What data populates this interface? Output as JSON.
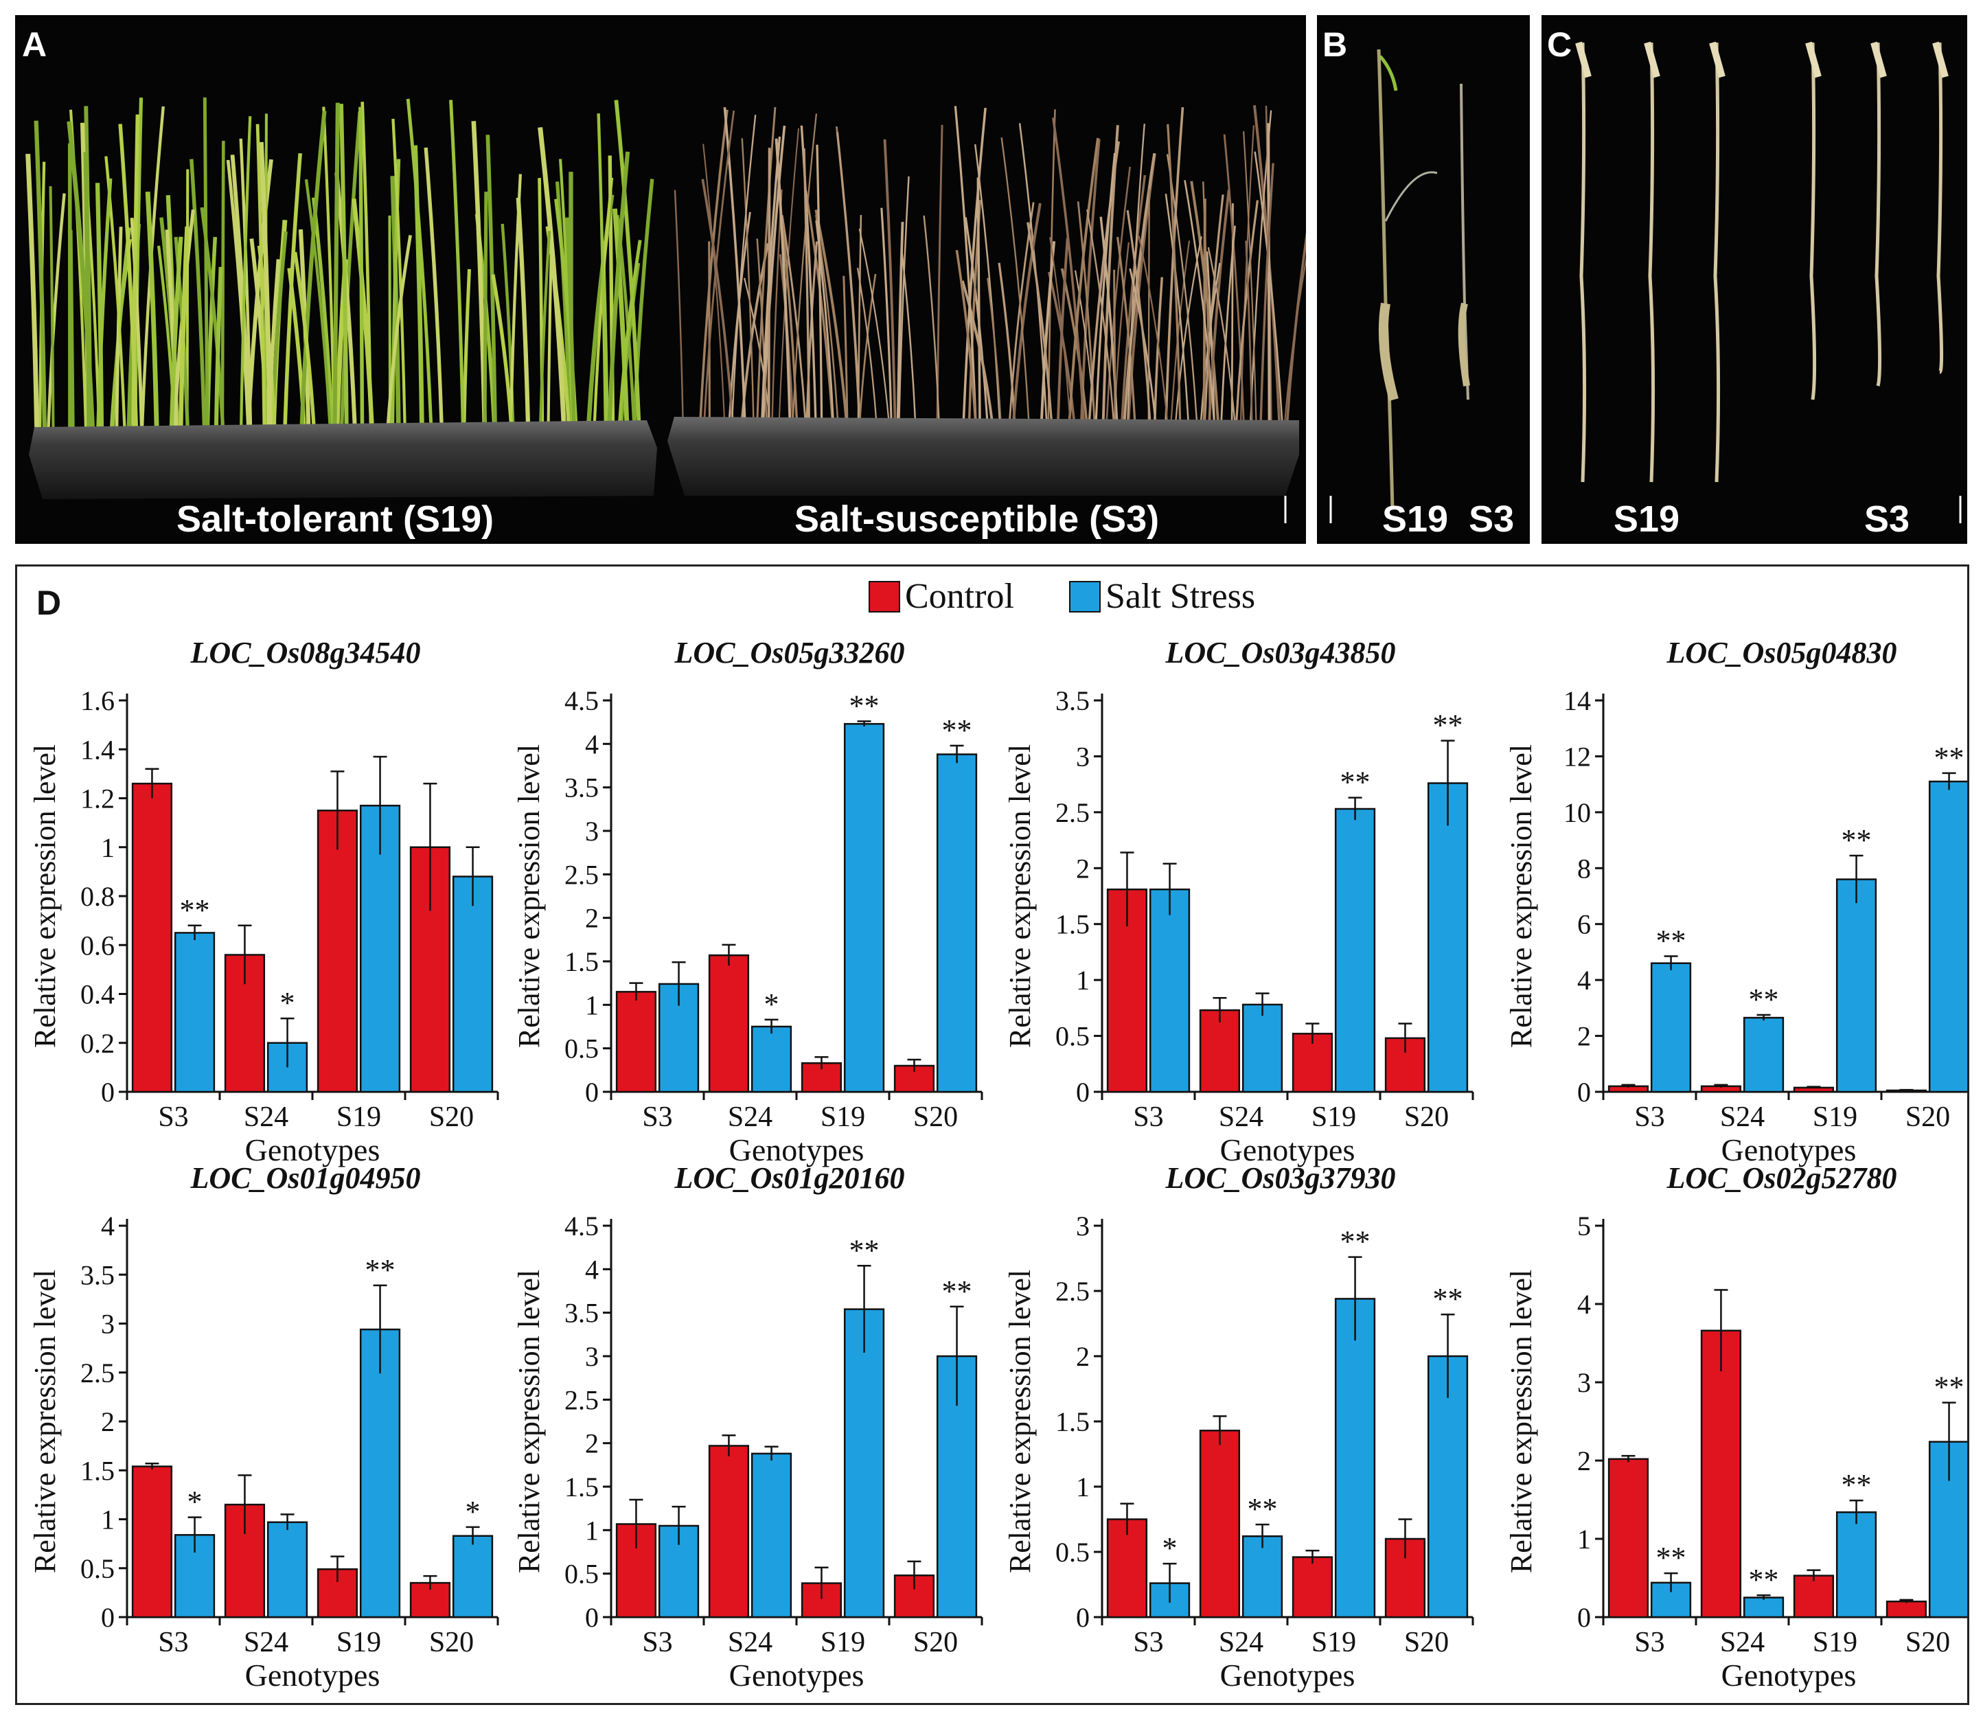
{
  "panels": {
    "a": {
      "letter": "A",
      "caption_left": "Salt-tolerant (S19)",
      "caption_right": "Salt-susceptible (S3)"
    },
    "b": {
      "letter": "B",
      "caption": "S19  S3"
    },
    "c": {
      "letter": "C",
      "caption_left": "S19",
      "caption_right": "S3"
    },
    "d": {
      "letter": "D"
    }
  },
  "legend": {
    "control_label": "Control",
    "stress_label": "Salt Stress"
  },
  "colors": {
    "control": "#e0141e",
    "stress": "#1ea0e0"
  },
  "chart_data": [
    {
      "type": "bar",
      "title": "LOC_Os08g34540",
      "ylabel": "Relative expression level",
      "xlabel": "Genotypes",
      "categories": [
        "S3",
        "S24",
        "S19",
        "S20"
      ],
      "ylim": [
        0,
        1.6
      ],
      "yticks": [
        0,
        0.2,
        0.4,
        0.6,
        0.8,
        1,
        1.2,
        1.4,
        1.6
      ],
      "ytick_labels": [
        "0",
        "0.2",
        "0.4",
        "0.6",
        "0.8",
        "1",
        "1.2",
        "1.4",
        "1.6"
      ],
      "series": [
        {
          "name": "Control",
          "values": [
            1.26,
            0.56,
            1.15,
            1.0
          ],
          "errors": [
            0.06,
            0.12,
            0.16,
            0.26
          ],
          "sig": [
            "",
            "",
            "",
            ""
          ]
        },
        {
          "name": "Salt Stress",
          "values": [
            0.65,
            0.2,
            1.17,
            0.88
          ],
          "errors": [
            0.03,
            0.1,
            0.2,
            0.12
          ],
          "sig": [
            "**",
            "*",
            "",
            ""
          ]
        }
      ]
    },
    {
      "type": "bar",
      "title": "LOC_Os05g33260",
      "ylabel": "Relative expression level",
      "xlabel": "Genotypes",
      "categories": [
        "S3",
        "S24",
        "S19",
        "S20"
      ],
      "ylim": [
        0,
        4.5
      ],
      "yticks": [
        0,
        0.5,
        1,
        1.5,
        2,
        2.5,
        3,
        3.5,
        4,
        4.5
      ],
      "ytick_labels": [
        "0",
        "0.5",
        "1",
        "1.5",
        "2",
        "2.5",
        "3",
        "3.5",
        "4",
        "4.5"
      ],
      "series": [
        {
          "name": "Control",
          "values": [
            1.15,
            1.57,
            0.33,
            0.3
          ],
          "errors": [
            0.1,
            0.12,
            0.07,
            0.07
          ],
          "sig": [
            "",
            "",
            "",
            ""
          ]
        },
        {
          "name": "Salt Stress",
          "values": [
            1.24,
            0.75,
            4.23,
            3.88
          ],
          "errors": [
            0.25,
            0.08,
            0.03,
            0.1
          ],
          "sig": [
            "",
            "*",
            "**",
            "**"
          ]
        }
      ]
    },
    {
      "type": "bar",
      "title": "LOC_Os03g43850",
      "ylabel": "Relative expression level",
      "xlabel": "Genotypes",
      "categories": [
        "S3",
        "S24",
        "S19",
        "S20"
      ],
      "ylim": [
        0,
        3.5
      ],
      "yticks": [
        0,
        0.5,
        1,
        1.5,
        2,
        2.5,
        3,
        3.5
      ],
      "ytick_labels": [
        "0",
        "0.5",
        "1",
        "1.5",
        "2",
        "2.5",
        "3",
        "3.5"
      ],
      "series": [
        {
          "name": "Control",
          "values": [
            1.81,
            0.73,
            0.52,
            0.48
          ],
          "errors": [
            0.33,
            0.11,
            0.09,
            0.13
          ],
          "sig": [
            "",
            "",
            "",
            ""
          ]
        },
        {
          "name": "Salt Stress",
          "values": [
            1.81,
            0.78,
            2.53,
            2.76
          ],
          "errors": [
            0.23,
            0.1,
            0.1,
            0.38
          ],
          "sig": [
            "",
            "",
            "**",
            "**"
          ]
        }
      ]
    },
    {
      "type": "bar",
      "title": "LOC_Os05g04830",
      "ylabel": "Relative expression level",
      "xlabel": "Genotypes",
      "categories": [
        "S3",
        "S24",
        "S19",
        "S20"
      ],
      "ylim": [
        0,
        14
      ],
      "yticks": [
        0,
        2,
        4,
        6,
        8,
        10,
        12,
        14
      ],
      "ytick_labels": [
        "0",
        "2",
        "4",
        "6",
        "8",
        "10",
        "12",
        "14"
      ],
      "series": [
        {
          "name": "Control",
          "values": [
            0.2,
            0.2,
            0.15,
            0.05
          ],
          "errors": [
            0.05,
            0.05,
            0.03,
            0.02
          ],
          "sig": [
            "",
            "",
            "",
            ""
          ]
        },
        {
          "name": "Salt Stress",
          "values": [
            4.6,
            2.65,
            7.6,
            11.1
          ],
          "errors": [
            0.25,
            0.1,
            0.85,
            0.3
          ],
          "sig": [
            "**",
            "**",
            "**",
            "**"
          ]
        }
      ]
    },
    {
      "type": "bar",
      "title": "LOC_Os01g04950",
      "ylabel": "Relative expression level",
      "xlabel": "Genotypes",
      "categories": [
        "S3",
        "S24",
        "S19",
        "S20"
      ],
      "ylim": [
        0,
        4
      ],
      "yticks": [
        0,
        0.5,
        1,
        1.5,
        2,
        2.5,
        3,
        3.5,
        4
      ],
      "ytick_labels": [
        "0",
        "0.5",
        "1",
        "1.5",
        "2",
        "2.5",
        "3",
        "3.5",
        "4"
      ],
      "series": [
        {
          "name": "Control",
          "values": [
            1.54,
            1.15,
            0.49,
            0.35
          ],
          "errors": [
            0.03,
            0.3,
            0.13,
            0.07
          ],
          "sig": [
            "",
            "",
            "",
            ""
          ]
        },
        {
          "name": "Salt Stress",
          "values": [
            0.84,
            0.97,
            2.94,
            0.83
          ],
          "errors": [
            0.18,
            0.08,
            0.45,
            0.09
          ],
          "sig": [
            "*",
            "",
            "**",
            "*"
          ]
        }
      ]
    },
    {
      "type": "bar",
      "title": "LOC_Os01g20160",
      "ylabel": "Relative expression level",
      "xlabel": "Genotypes",
      "categories": [
        "S3",
        "S24",
        "S19",
        "S20"
      ],
      "ylim": [
        0,
        4.5
      ],
      "yticks": [
        0,
        0.5,
        1,
        1.5,
        2,
        2.5,
        3,
        3.5,
        4,
        4.5
      ],
      "ytick_labels": [
        "0",
        "0.5",
        "1",
        "1.5",
        "2",
        "2.5",
        "3",
        "3.5",
        "4",
        "4.5"
      ],
      "series": [
        {
          "name": "Control",
          "values": [
            1.07,
            1.97,
            0.39,
            0.48
          ],
          "errors": [
            0.28,
            0.12,
            0.18,
            0.16
          ],
          "sig": [
            "",
            "",
            "",
            ""
          ]
        },
        {
          "name": "Salt Stress",
          "values": [
            1.05,
            1.88,
            3.54,
            3.0
          ],
          "errors": [
            0.22,
            0.08,
            0.5,
            0.57
          ],
          "sig": [
            "",
            "",
            "**",
            "**"
          ]
        }
      ]
    },
    {
      "type": "bar",
      "title": "LOC_Os03g37930",
      "ylabel": "Relative expression level",
      "xlabel": "Genotypes",
      "categories": [
        "S3",
        "S24",
        "S19",
        "S20"
      ],
      "ylim": [
        0,
        3
      ],
      "yticks": [
        0,
        0.5,
        1,
        1.5,
        2,
        2.5,
        3
      ],
      "ytick_labels": [
        "0",
        "0.5",
        "1",
        "1.5",
        "2",
        "2.5",
        "3"
      ],
      "series": [
        {
          "name": "Control",
          "values": [
            0.75,
            1.43,
            0.46,
            0.6
          ],
          "errors": [
            0.12,
            0.11,
            0.05,
            0.15
          ],
          "sig": [
            "",
            "",
            "",
            ""
          ]
        },
        {
          "name": "Salt Stress",
          "values": [
            0.26,
            0.62,
            2.44,
            2.0
          ],
          "errors": [
            0.15,
            0.09,
            0.32,
            0.32
          ],
          "sig": [
            "*",
            "**",
            "**",
            "**"
          ]
        }
      ]
    },
    {
      "type": "bar",
      "title": "LOC_Os02g52780",
      "ylabel": "Relative expression level",
      "xlabel": "Genotypes",
      "categories": [
        "S3",
        "S24",
        "S19",
        "S20"
      ],
      "ylim": [
        0,
        5
      ],
      "yticks": [
        0,
        1,
        2,
        3,
        4,
        5
      ],
      "ytick_labels": [
        "0",
        "1",
        "2",
        "3",
        "4",
        "5"
      ],
      "series": [
        {
          "name": "Control",
          "values": [
            2.02,
            3.66,
            0.53,
            0.2
          ],
          "errors": [
            0.04,
            0.52,
            0.07,
            0.02
          ],
          "sig": [
            "",
            "",
            "",
            ""
          ]
        },
        {
          "name": "Salt Stress",
          "values": [
            0.44,
            0.25,
            1.34,
            2.24
          ],
          "errors": [
            0.12,
            0.03,
            0.15,
            0.5
          ],
          "sig": [
            "**",
            "**",
            "**",
            "**"
          ]
        }
      ]
    }
  ]
}
